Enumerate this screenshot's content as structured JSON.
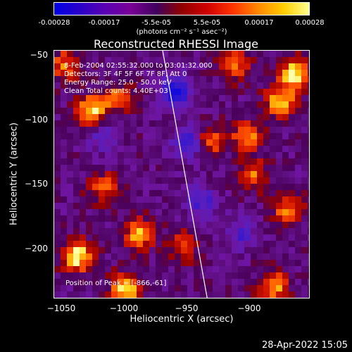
{
  "colorbar": {
    "tick_labels": [
      "-0.00028",
      "-0.00017",
      "-5.5e-05",
      "5.5e-05",
      "0.00017",
      "0.00028"
    ],
    "units": "(photons cm⁻² s⁻¹ asec⁻²)",
    "colors": [
      "#0000e6",
      "#2a00c8",
      "#5a00b4",
      "#7a0096",
      "#400060",
      "#900000",
      "#d00000",
      "#ff3300",
      "#ff8800",
      "#ffcc00",
      "#ffff90"
    ]
  },
  "chart_data": {
    "type": "heatmap",
    "title": "Reconstructed RHESSI Image",
    "xlabel": "Heliocentric X (arcsec)",
    "ylabel": "Heliocentric Y (arcsec)",
    "xlim": [
      -1058,
      -863
    ],
    "ylim": [
      -239,
      -49
    ],
    "x_ticks": [
      -1050,
      -1000,
      -950,
      -900
    ],
    "x_tick_labels": [
      "−1050",
      "−1000",
      "−950",
      "−900"
    ],
    "y_ticks": [
      -50,
      -100,
      -150,
      -200
    ],
    "y_tick_labels": [
      "−50",
      "−100",
      "−150",
      "−200"
    ],
    "info_lines": [
      "8-Feb-2004 02:55:32.000 to 03:01:32.000",
      "Detectors: 3F 4F 5F 6F 7F 8F, Att 0",
      "Energy Range: 25.0 - 50.0 keV",
      "Clean    Total counts: 4.40E+03"
    ],
    "peak_label": "Position of Peak = [-866,-61]",
    "limb_line": [
      [
        -975,
        -49
      ],
      [
        -941,
        -239
      ]
    ],
    "hot_spots": [
      {
        "x": -1040,
        "y": -207,
        "level": 0.92
      },
      {
        "x": -1030,
        "y": -95,
        "level": 0.85
      },
      {
        "x": -1003,
        "y": -232,
        "level": 0.88
      },
      {
        "x": -993,
        "y": -190,
        "level": 0.72
      },
      {
        "x": -875,
        "y": -67,
        "level": 0.9
      },
      {
        "x": -885,
        "y": -88,
        "level": 0.78
      },
      {
        "x": -910,
        "y": -115,
        "level": 0.7
      },
      {
        "x": -940,
        "y": -118,
        "level": 0.65
      },
      {
        "x": -890,
        "y": -230,
        "level": 0.7
      },
      {
        "x": -880,
        "y": -170,
        "level": 0.6
      },
      {
        "x": -905,
        "y": -145,
        "level": 0.55
      },
      {
        "x": -1010,
        "y": -85,
        "level": 0.55
      },
      {
        "x": -1050,
        "y": -60,
        "level": 0.6
      },
      {
        "x": -920,
        "y": -60,
        "level": 0.58
      },
      {
        "x": -960,
        "y": -200,
        "level": 0.5
      },
      {
        "x": -1020,
        "y": -155,
        "level": 0.55
      }
    ],
    "cold_spots": [
      {
        "x": -965,
        "y": -80,
        "level": -0.9
      },
      {
        "x": -955,
        "y": -120,
        "level": -0.8
      },
      {
        "x": -945,
        "y": -165,
        "level": -0.55
      },
      {
        "x": -1020,
        "y": -115,
        "level": -0.45
      },
      {
        "x": -915,
        "y": -190,
        "level": -0.45
      }
    ]
  },
  "footer": {
    "date": "28-Apr-2022 15:05"
  }
}
